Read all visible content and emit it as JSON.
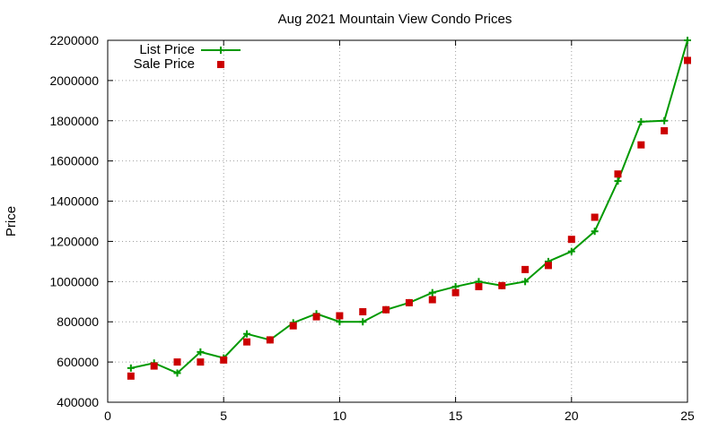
{
  "chart_data": {
    "type": "line",
    "title": "Aug 2021 Mountain View Condo Prices",
    "xlabel": "",
    "ylabel": "Price",
    "xlim": [
      0,
      25
    ],
    "ylim": [
      400000,
      2200000
    ],
    "xticks": [
      0,
      5,
      10,
      15,
      20,
      25
    ],
    "yticks": [
      400000,
      600000,
      800000,
      1000000,
      1200000,
      1400000,
      1600000,
      1800000,
      2000000,
      2200000
    ],
    "xtick_labels": [
      "0",
      "5",
      "10",
      "15",
      "20",
      "25"
    ],
    "ytick_labels": [
      "400000",
      "600000",
      "800000",
      "1000000",
      "1200000",
      "1400000",
      "1600000",
      "1800000",
      "2000000",
      "2200000"
    ],
    "grid": true,
    "legend_position": "top-left",
    "series": [
      {
        "name": "List Price",
        "style": "line-plus",
        "color": "#009900",
        "x": [
          1,
          2,
          3,
          4,
          5,
          6,
          7,
          8,
          9,
          10,
          11,
          12,
          13,
          14,
          15,
          16,
          17,
          18,
          19,
          20,
          21,
          22,
          23,
          24,
          25
        ],
        "values": [
          570000,
          595000,
          545000,
          650000,
          620000,
          740000,
          710000,
          795000,
          840000,
          800000,
          800000,
          860000,
          895000,
          945000,
          975000,
          1000000,
          980000,
          1000000,
          1100000,
          1150000,
          1250000,
          1500000,
          1795000,
          1800000,
          2200000
        ]
      },
      {
        "name": "Sale Price",
        "style": "square-markers",
        "color": "#cc0000",
        "x": [
          1,
          2,
          3,
          4,
          5,
          6,
          7,
          8,
          9,
          10,
          11,
          12,
          13,
          14,
          15,
          16,
          17,
          18,
          19,
          20,
          21,
          22,
          23,
          24,
          25
        ],
        "values": [
          530000,
          580000,
          600000,
          600000,
          610000,
          700000,
          710000,
          780000,
          825000,
          830000,
          850000,
          860000,
          895000,
          910000,
          945000,
          975000,
          980000,
          1060000,
          1080000,
          1210000,
          1320000,
          1535000,
          1680000,
          1750000,
          2100000
        ]
      }
    ]
  }
}
